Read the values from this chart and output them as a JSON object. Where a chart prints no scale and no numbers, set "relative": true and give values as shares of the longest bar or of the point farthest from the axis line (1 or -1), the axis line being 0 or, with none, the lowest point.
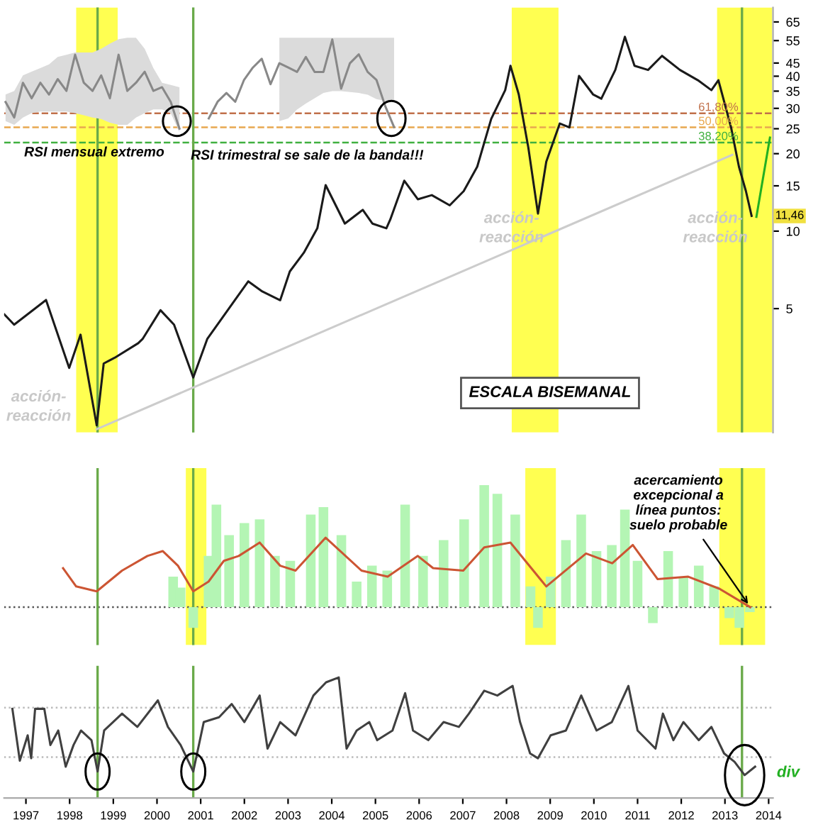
{
  "chart_data": [
    {
      "type": "line",
      "log": true,
      "ylim": [
        1.65,
        74
      ],
      "yticks": [
        5,
        10,
        15,
        20,
        25,
        30,
        35,
        40,
        45,
        55,
        65
      ],
      "xlim": [
        1996.5,
        2014.1
      ],
      "tick_labels": "y",
      "grid": false,
      "series": [
        {
          "color": "#1a1a1a",
          "x": [
            1996.51,
            1996.73,
            1997.46,
            1997.99,
            1998.25,
            1998.62,
            1998.78,
            1999.03,
            1999.57,
            1999.67,
            2000.08,
            2000.39,
            2000.83,
            2001.15,
            2001.78,
            2002.09,
            2002.41,
            2002.82,
            2003.04,
            2003.36,
            2003.67,
            2003.86,
            2004.3,
            2004.71,
            2004.93,
            2005.25,
            2005.34,
            2005.66,
            2005.97,
            2006.29,
            2006.7,
            2007.02,
            2007.33,
            2007.65,
            2007.97,
            2008.09,
            2008.28,
            2008.5,
            2008.72,
            2008.91,
            2009.22,
            2009.44,
            2009.66,
            2009.98,
            2010.17,
            2010.49,
            2010.71,
            2010.93,
            2011.24,
            2011.56,
            2011.97,
            2012.38,
            2012.69,
            2012.85,
            2013.14,
            2013.32,
            2013.48,
            2013.61
          ],
          "values": [
            4.74,
            4.33,
            5.4,
            2.94,
            3.96,
            1.76,
            3.06,
            3.22,
            3.67,
            3.81,
            4.93,
            4.33,
            2.7,
            3.81,
            5.39,
            6.38,
            5.83,
            5.39,
            6.97,
            8.24,
            10.26,
            15.1,
            10.7,
            12.1,
            10.7,
            10.26,
            11.1,
            15.7,
            13.3,
            13.8,
            12.6,
            14.3,
            17.8,
            27.3,
            35.3,
            43.9,
            34.0,
            21.1,
            11.7,
            18.6,
            26.2,
            25.3,
            40.1,
            34.0,
            32.7,
            42.3,
            56.9,
            43.9,
            42.3,
            48.0,
            42.3,
            38.6,
            35.3,
            38.6,
            25.3,
            17.8,
            14.3,
            11.46
          ]
        },
        {
          "color": "#cccccc",
          "x": [
            1998.62,
            2013.17
          ],
          "values": [
            1.7,
            19.8
          ]
        },
        {
          "color": "#22b022",
          "x": [
            2013.72,
            2014.03
          ],
          "values": [
            11.37,
            23.1
          ]
        }
      ],
      "bands": [
        {
          "axis": "x",
          "from": 1998.15,
          "to": 1999.1,
          "color": "#ffff33"
        },
        {
          "axis": "x",
          "from": 2008.12,
          "to": 2009.19,
          "color": "#ffff33"
        },
        {
          "axis": "x",
          "from": 2012.82,
          "to": 2014.08,
          "color": "#ffff33"
        }
      ],
      "ref_lines": [
        {
          "axis": "y",
          "value": 28.7,
          "color": "#c0704a",
          "line_style": "dashed"
        },
        {
          "axis": "y",
          "value": 25.3,
          "color": "#e8a850",
          "line_style": "dashed"
        },
        {
          "axis": "y",
          "value": 22.1,
          "color": "#40b040",
          "line_style": "dashed"
        },
        {
          "axis": "x",
          "value": 1998.64,
          "color": "#6aaa4a"
        },
        {
          "axis": "x",
          "value": 2000.83,
          "color": "#6aaa4a"
        },
        {
          "axis": "x",
          "value": 2013.39,
          "color": "#6aaa4a"
        }
      ],
      "annotations": [
        "acción-\nreacción",
        "acción-\nreacción",
        "acción-\nreacción",
        "ESCALA BISEMANAL",
        {
          "text": "11,46",
          "y": 11.46
        },
        "61,80%",
        "50,00%",
        "38,20%"
      ]
    },
    {
      "type": "bar",
      "relative": true,
      "xlim": [
        1996.5,
        2014.1
      ],
      "tick_labels": false,
      "grid": false,
      "series": [
        {
          "type": "bar",
          "color": "#b4f5b4",
          "x": [
            2000.37,
            2000.54,
            2000.83,
            2001.18,
            2001.36,
            2001.65,
            2002.0,
            2002.35,
            2002.7,
            2003.05,
            2003.52,
            2003.81,
            2004.22,
            2004.57,
            2004.92,
            2005.27,
            2005.68,
            2006.09,
            2006.56,
            2007.03,
            2007.49,
            2007.79,
            2008.2,
            2008.55,
            2008.72,
            2009.01,
            2009.36,
            2009.71,
            2010.06,
            2010.41,
            2010.71,
            2011.0,
            2011.35,
            2011.7,
            2012.05,
            2012.4,
            2012.75,
            2013.1,
            2013.33,
            2013.57
          ],
          "values": [
            0.25,
            0.16,
            -0.17,
            0.42,
            0.84,
            0.59,
            0.69,
            0.72,
            0.42,
            0.38,
            0.76,
            0.82,
            0.59,
            0.21,
            0.34,
            0.3,
            0.84,
            0.42,
            0.55,
            0.72,
            1,
            0.93,
            0.76,
            0.17,
            -0.17,
            0.25,
            0.55,
            0.76,
            0.46,
            0.51,
            0.8,
            0.38,
            -0.13,
            0.46,
            0.25,
            0.34,
            0.17,
            -0.09,
            -0.17,
            -0.04
          ]
        },
        {
          "type": "line",
          "color": "#cc5533",
          "x": [
            1997.85,
            1998.15,
            1998.62,
            1999.2,
            1999.78,
            2000.13,
            2000.48,
            2000.83,
            2001.18,
            2001.53,
            2001.87,
            2002.35,
            2002.82,
            2003.17,
            2003.86,
            2004.68,
            2005.28,
            2005.97,
            2006.32,
            2007.01,
            2007.49,
            2008.09,
            2008.91,
            2009.82,
            2010.42,
            2010.89,
            2011.46,
            2012.16,
            2012.88,
            2013.58
          ],
          "values": [
            0.32,
            0.17,
            0.13,
            0.3,
            0.42,
            0.46,
            0.34,
            0.13,
            0.21,
            0.38,
            0.42,
            0.53,
            0.34,
            0.3,
            0.57,
            0.3,
            0.25,
            0.42,
            0.32,
            0.3,
            0.49,
            0.53,
            0.17,
            0.44,
            0.36,
            0.51,
            0.23,
            0.25,
            0.15,
            0.0
          ]
        }
      ],
      "bands": [
        {
          "axis": "x",
          "from": 2000.66,
          "to": 2001.13,
          "color": "#ffff33"
        },
        {
          "axis": "x",
          "from": 2008.43,
          "to": 2009.13,
          "color": "#ffff33"
        },
        {
          "axis": "x",
          "from": 2012.87,
          "to": 2013.92,
          "color": "#ffff33"
        }
      ],
      "ref_lines": [
        {
          "axis": "y",
          "value": 0,
          "color": "#555555",
          "line_style": "dotted"
        },
        {
          "axis": "x",
          "value": 1998.64,
          "color": "#6aaa4a"
        },
        {
          "axis": "x",
          "value": 2000.83,
          "color": "#6aaa4a"
        },
        {
          "axis": "x",
          "value": 2013.39,
          "color": "#6aaa4a"
        }
      ],
      "annotations": [
        "acercamiento\nexcepcional a\nlínea puntos:\nsuelo probable"
      ]
    },
    {
      "type": "line",
      "relative": true,
      "xlim": [
        1996.5,
        2014.1
      ],
      "xticks": [
        1997,
        1998,
        1999,
        2000,
        2001,
        2002,
        2003,
        2004,
        2005,
        2006,
        2007,
        2008,
        2009,
        2010,
        2011,
        2012,
        2013,
        2014
      ],
      "tick_labels": "x",
      "grid": false,
      "series": [
        {
          "color": "#404040",
          "x": [
            1996.69,
            1996.86,
            1997.04,
            1997.12,
            1997.21,
            1997.42,
            1997.56,
            1997.74,
            1997.91,
            1998.09,
            1998.26,
            1998.5,
            1998.64,
            1998.79,
            1999.2,
            1999.55,
            2000.02,
            2000.25,
            2000.54,
            2000.83,
            2001.07,
            2001.42,
            2001.71,
            2002.0,
            2002.35,
            2002.53,
            2002.82,
            2003.17,
            2003.58,
            2003.87,
            2004.16,
            2004.34,
            2004.57,
            2004.86,
            2005.04,
            2005.39,
            2005.68,
            2005.86,
            2006.21,
            2006.56,
            2006.91,
            2007.14,
            2007.49,
            2007.79,
            2008.14,
            2008.31,
            2008.54,
            2008.72,
            2009.01,
            2009.36,
            2009.71,
            2010.06,
            2010.41,
            2010.79,
            2011.0,
            2011.41,
            2011.58,
            2011.82,
            2012.05,
            2012.4,
            2012.69,
            2012.98,
            2013.22,
            2013.45,
            2013.69
          ],
          "values": [
            0.74,
            0.31,
            0.52,
            0.33,
            0.74,
            0.74,
            0.44,
            0.56,
            0.26,
            0.44,
            0.56,
            0.48,
            0.22,
            0.56,
            0.7,
            0.59,
            0.81,
            0.59,
            0.44,
            0.22,
            0.63,
            0.67,
            0.78,
            0.63,
            0.85,
            0.41,
            0.63,
            0.52,
            0.85,
            0.96,
            1,
            0.41,
            0.56,
            0.63,
            0.48,
            0.56,
            0.87,
            0.56,
            0.48,
            0.63,
            0.59,
            0.7,
            0.89,
            0.85,
            0.93,
            0.63,
            0.37,
            0.33,
            0.52,
            0.56,
            0.85,
            0.56,
            0.63,
            0.93,
            0.56,
            0.41,
            0.7,
            0.48,
            0.63,
            0.48,
            0.59,
            0.37,
            0.3,
            0.19,
            0.26
          ]
        }
      ],
      "ref_lines": [
        {
          "axis": "y",
          "value": 0.75,
          "color": "#bbbbbb",
          "line_style": "dotted"
        },
        {
          "axis": "y",
          "value": 0.34,
          "color": "#bbbbbb",
          "line_style": "dotted"
        },
        {
          "axis": "x",
          "value": 1998.64,
          "color": "#6aaa4a"
        },
        {
          "axis": "x",
          "value": 2000.83,
          "color": "#6aaa4a"
        },
        {
          "axis": "x",
          "value": 2013.39,
          "color": "#6aaa4a"
        }
      ],
      "annotations": [
        "div"
      ]
    },
    {
      "type": "line",
      "relative": true,
      "tick_labels": false,
      "grid": false,
      "categories": [
        null,
        null,
        null,
        null,
        null,
        null,
        null,
        null,
        null,
        null,
        null,
        null,
        null,
        null,
        null,
        null,
        null,
        null,
        null,
        null,
        null
      ],
      "series": [
        {
          "color": "#888888",
          "values": [
            0.36,
            0.15,
            0.62,
            0.41,
            0.62,
            0.46,
            0.67,
            0.51,
            1,
            0.62,
            0.51,
            0.72,
            0.41,
            1,
            0.51,
            0.62,
            0.77,
            0.51,
            0.56,
            0.36,
            0
          ],
          "upper": [
            0.46,
            0.51,
            0.72,
            0.77,
            0.82,
            0.87,
            0.97,
            1.0,
            1.03,
            1.03,
            1.03,
            1.08,
            1.15,
            1.21,
            1.23,
            1.23,
            1.08,
            0.82,
            0.62,
            0.59,
            0.56
          ],
          "lower": [
            0.1,
            0.05,
            0.15,
            0.21,
            0.23,
            0.23,
            0.23,
            0.23,
            0.21,
            0.18,
            0.15,
            0.13,
            0.08,
            0.05,
            0.05,
            0.15,
            0.21,
            0.26,
            0.26,
            0.21,
            -0.05
          ]
        }
      ],
      "annotations": [
        "RSI mensual extremo"
      ]
    },
    {
      "type": "line",
      "relative": true,
      "tick_labels": false,
      "grid": false,
      "categories": [
        null,
        null,
        null,
        null,
        null,
        null,
        null,
        null,
        null,
        null,
        null,
        null,
        null,
        null,
        null,
        null,
        null,
        null,
        null,
        null,
        null,
        null
      ],
      "series": [
        {
          "color": "#888888",
          "values": [
            0.1,
            0.29,
            0.39,
            0.29,
            0.54,
            0.68,
            0.78,
            0.49,
            0.73,
            0.68,
            0.63,
            0.8,
            0.63,
            0.63,
            1,
            0.44,
            0.73,
            0.83,
            0.63,
            0.54,
            0.24,
            0
          ],
          "upper": [
            null,
            null,
            null,
            null,
            null,
            null,
            null,
            null,
            1.02,
            1.02,
            1.02,
            1.02,
            1.02,
            1.02,
            1.02,
            1.02,
            1.02,
            1.02,
            1.02,
            1.02,
            1.02,
            1.02
          ],
          "lower": [
            null,
            null,
            null,
            null,
            null,
            null,
            null,
            null,
            0.07,
            0.1,
            0.2,
            0.27,
            0.33,
            0.39,
            0.41,
            0.41,
            0.4,
            0.39,
            0.37,
            0.32,
            0.3,
            0.29
          ]
        }
      ],
      "annotations": [
        "RSI trimestral se sale de la banda!!!"
      ]
    }
  ]
}
